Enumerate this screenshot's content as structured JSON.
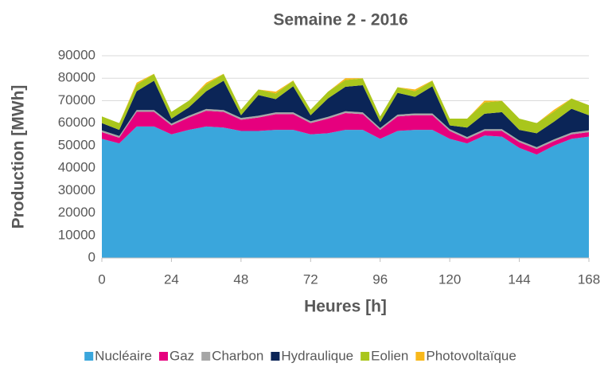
{
  "chart_data": {
    "type": "stacked_area",
    "title": "Semaine 2 - 2016",
    "xlabel": "Heures [h]",
    "ylabel": "Production [MWh]",
    "x": [
      0,
      6,
      12,
      18,
      24,
      30,
      36,
      42,
      48,
      54,
      60,
      66,
      72,
      78,
      84,
      90,
      96,
      102,
      108,
      114,
      120,
      126,
      132,
      138,
      144,
      150,
      156,
      162,
      168
    ],
    "series": [
      {
        "name": "Nucléaire",
        "color": "#3aa6dc",
        "values": [
          53000,
          51000,
          58500,
          58500,
          55000,
          57000,
          58500,
          58000,
          56500,
          56500,
          57000,
          57000,
          55000,
          55500,
          57000,
          57000,
          53000,
          56500,
          57000,
          57000,
          53000,
          51000,
          54500,
          54000,
          49000,
          46000,
          50000,
          53000,
          54000
        ]
      },
      {
        "name": "Gaz",
        "color": "#e6007e",
        "values": [
          3000,
          2500,
          6500,
          6500,
          4000,
          5500,
          7000,
          7000,
          5000,
          6000,
          7000,
          7000,
          5000,
          6500,
          7500,
          7000,
          4000,
          6500,
          6500,
          6500,
          3500,
          2000,
          2000,
          2500,
          2500,
          2500,
          2000,
          2000,
          2000
        ]
      },
      {
        "name": "Charbon",
        "color": "#a6a6a6",
        "values": [
          800,
          800,
          800,
          800,
          800,
          800,
          800,
          800,
          800,
          800,
          800,
          800,
          800,
          800,
          800,
          800,
          800,
          800,
          800,
          800,
          800,
          800,
          800,
          800,
          800,
          800,
          800,
          800,
          800
        ]
      },
      {
        "name": "Hydraulique",
        "color": "#0b2557",
        "values": [
          3200,
          2700,
          8400,
          13100,
          2200,
          3700,
          7900,
          13100,
          1200,
          9200,
          5900,
          11600,
          2700,
          8200,
          10900,
          12100,
          2700,
          9700,
          7400,
          12100,
          1700,
          4200,
          6900,
          7600,
          4700,
          6200,
          7900,
          10600,
          6700
        ]
      },
      {
        "name": "Eolien",
        "color": "#a9c61c",
        "values": [
          3000,
          3000,
          3000,
          3000,
          3000,
          3000,
          3000,
          3000,
          2500,
          2500,
          2500,
          2500,
          2500,
          3000,
          3000,
          3000,
          2500,
          2500,
          2500,
          2500,
          3000,
          4000,
          5000,
          5000,
          5000,
          4500,
          4500,
          4500,
          4500
        ]
      },
      {
        "name": "Photovoltaïque",
        "color": "#f8b81a",
        "values": [
          0,
          0,
          800,
          100,
          0,
          0,
          800,
          100,
          0,
          0,
          800,
          100,
          0,
          0,
          800,
          100,
          0,
          0,
          800,
          100,
          0,
          0,
          800,
          100,
          0,
          0,
          800,
          100,
          0
        ]
      }
    ],
    "xlim": [
      0,
      168
    ],
    "xticks": [
      0,
      24,
      48,
      72,
      96,
      120,
      144,
      168
    ],
    "ylim": [
      0,
      90000
    ],
    "yticks": [
      0,
      10000,
      20000,
      30000,
      40000,
      50000,
      60000,
      70000,
      80000,
      90000
    ],
    "grid": true,
    "legend": "bottom"
  }
}
